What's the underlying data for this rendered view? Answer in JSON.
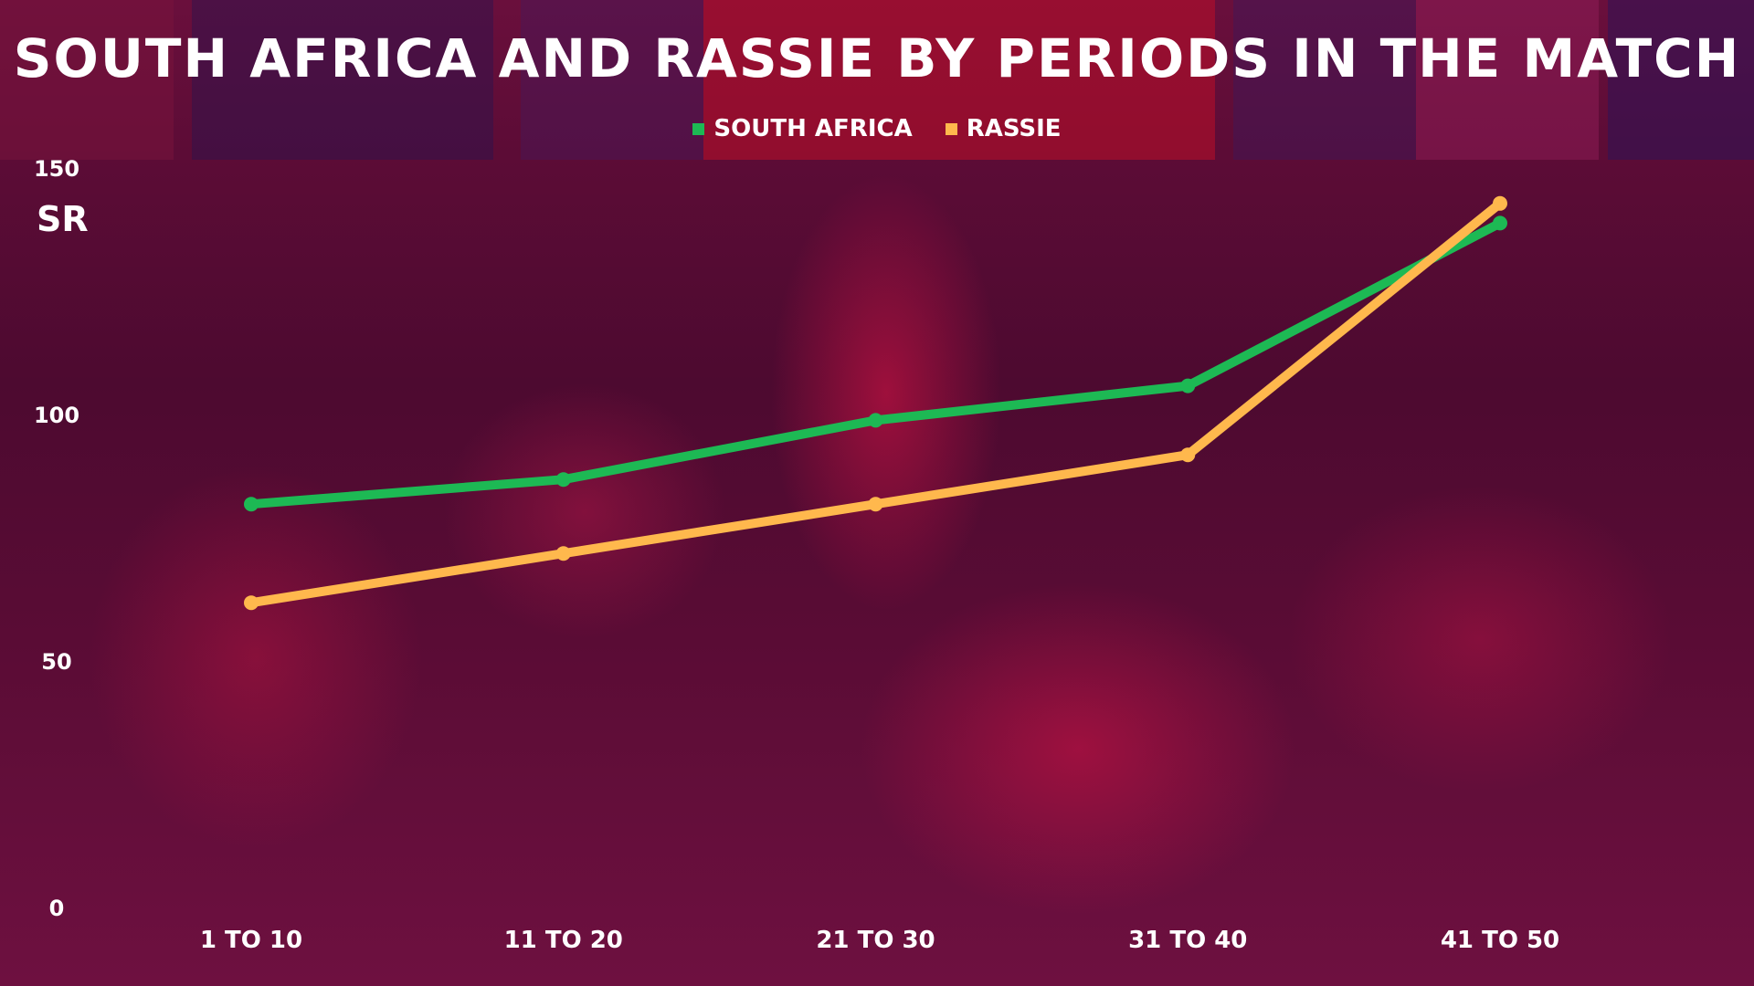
{
  "chart_data": {
    "type": "line",
    "title": "SOUTH AFRICA AND RASSIE BY PERIODS IN THE MATCH",
    "ylabel": "SR",
    "xlabel": "",
    "categories": [
      "1 TO 10",
      "11 TO 20",
      "21 TO 30",
      "31 TO 40",
      "41 TO 50"
    ],
    "ylim": [
      0,
      150
    ],
    "yticks": [
      0,
      50,
      100,
      150
    ],
    "grid": false,
    "legend_position": "top-center",
    "series": [
      {
        "name": "SOUTH AFRICA",
        "color": "#1db954",
        "values": [
          82,
          87,
          99,
          106,
          139
        ]
      },
      {
        "name": "RASSIE",
        "color": "#ffb84d",
        "values": [
          62,
          72,
          82,
          92,
          143
        ]
      }
    ]
  }
}
